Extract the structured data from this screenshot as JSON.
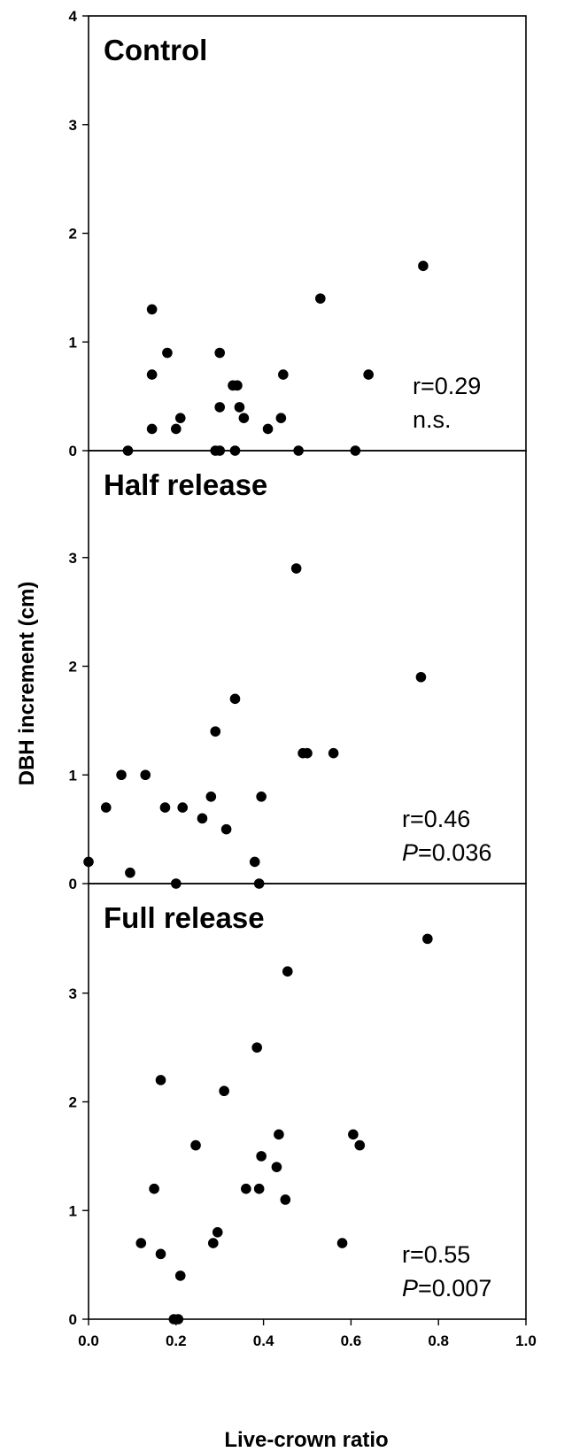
{
  "chart_data": {
    "type": "scatter",
    "xlabel": "Live-crown ratio",
    "ylabel": "DBH increment (cm)",
    "xlim": [
      0,
      1.0
    ],
    "xticks": [
      "0.0",
      "0.2",
      "0.4",
      "0.6",
      "0.8",
      "1.0"
    ],
    "grid": false,
    "panels": [
      {
        "title": "Control",
        "ylim": [
          0,
          4
        ],
        "yticks": [
          "0",
          "1",
          "2",
          "3",
          "4"
        ],
        "stat_r": "r=0.29",
        "stat_p_prefix": "",
        "stat_p_value": "n.s.",
        "points": [
          [
            0.09,
            0.0
          ],
          [
            0.145,
            1.3
          ],
          [
            0.145,
            0.7
          ],
          [
            0.145,
            0.2
          ],
          [
            0.18,
            0.9
          ],
          [
            0.2,
            0.2
          ],
          [
            0.21,
            0.3
          ],
          [
            0.29,
            0.0
          ],
          [
            0.3,
            0.0
          ],
          [
            0.3,
            0.9
          ],
          [
            0.3,
            0.4
          ],
          [
            0.33,
            0.6
          ],
          [
            0.335,
            0.0
          ],
          [
            0.34,
            0.6
          ],
          [
            0.345,
            0.4
          ],
          [
            0.355,
            0.3
          ],
          [
            0.41,
            0.2
          ],
          [
            0.44,
            0.3
          ],
          [
            0.445,
            0.7
          ],
          [
            0.48,
            0.0
          ],
          [
            0.53,
            1.4
          ],
          [
            0.61,
            0.0
          ],
          [
            0.64,
            0.7
          ],
          [
            0.765,
            1.7
          ]
        ]
      },
      {
        "title": "Half release",
        "ylim": [
          0,
          4
        ],
        "yticks": [
          "0",
          "1",
          "2",
          "3"
        ],
        "stat_r": "r=0.46",
        "stat_p_prefix": "P",
        "stat_p_value": "=0.036",
        "points": [
          [
            0.0,
            0.2
          ],
          [
            0.04,
            0.7
          ],
          [
            0.075,
            1.0
          ],
          [
            0.095,
            0.1
          ],
          [
            0.13,
            1.0
          ],
          [
            0.175,
            0.7
          ],
          [
            0.2,
            0.0
          ],
          [
            0.215,
            0.7
          ],
          [
            0.26,
            0.6
          ],
          [
            0.28,
            0.8
          ],
          [
            0.29,
            1.4
          ],
          [
            0.315,
            0.5
          ],
          [
            0.335,
            1.7
          ],
          [
            0.38,
            0.2
          ],
          [
            0.39,
            0.0
          ],
          [
            0.395,
            0.8
          ],
          [
            0.475,
            2.9
          ],
          [
            0.49,
            1.2
          ],
          [
            0.5,
            1.2
          ],
          [
            0.56,
            1.2
          ],
          [
            0.76,
            1.9
          ]
        ]
      },
      {
        "title": "Full release",
        "ylim": [
          0,
          4
        ],
        "yticks": [
          "0",
          "1",
          "2",
          "3"
        ],
        "stat_r": "r=0.55",
        "stat_p_prefix": "P",
        "stat_p_value": "=0.007",
        "points": [
          [
            0.12,
            0.7
          ],
          [
            0.15,
            1.2
          ],
          [
            0.165,
            2.2
          ],
          [
            0.165,
            0.6
          ],
          [
            0.195,
            0.0
          ],
          [
            0.205,
            0.0
          ],
          [
            0.21,
            0.4
          ],
          [
            0.245,
            1.6
          ],
          [
            0.285,
            0.7
          ],
          [
            0.295,
            0.8
          ],
          [
            0.31,
            2.1
          ],
          [
            0.36,
            1.2
          ],
          [
            0.385,
            2.5
          ],
          [
            0.39,
            1.2
          ],
          [
            0.395,
            1.5
          ],
          [
            0.43,
            1.4
          ],
          [
            0.435,
            1.7
          ],
          [
            0.45,
            1.1
          ],
          [
            0.455,
            3.2
          ],
          [
            0.58,
            0.7
          ],
          [
            0.605,
            1.7
          ],
          [
            0.62,
            1.6
          ],
          [
            0.775,
            3.5
          ]
        ]
      }
    ]
  }
}
